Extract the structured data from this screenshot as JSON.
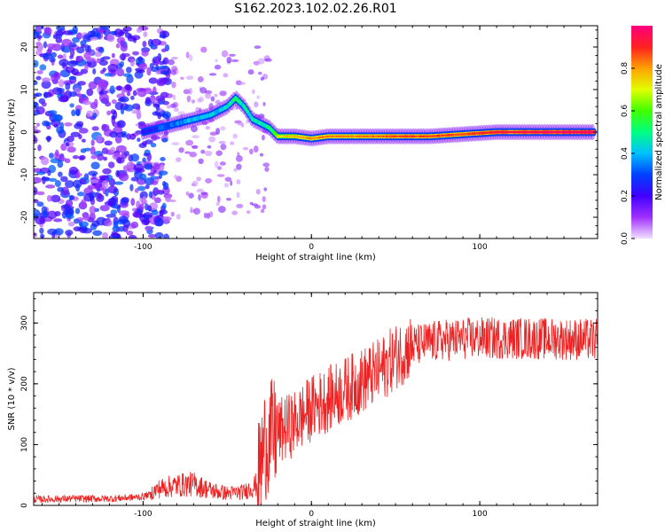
{
  "figure": {
    "title": "S162.2023.102.02.26.R01"
  },
  "chart_data": [
    {
      "type": "heatmap",
      "xlabel": "Height of straight line (km)",
      "ylabel": "Frequency (Hz)",
      "xlim": [
        -165,
        170
      ],
      "ylim": [
        -25,
        25
      ],
      "xticks": [
        -100,
        0,
        100
      ],
      "yticks": [
        -20,
        -10,
        0,
        10,
        20
      ],
      "colorbar": {
        "label": "Normalized spectral amplitude",
        "ticks": [
          0.0,
          0.2,
          0.4,
          0.6,
          0.8
        ],
        "colormap": [
          "#f0e0ff",
          "#a030ff",
          "#4000ff",
          "#0040ff",
          "#00c0ff",
          "#00ff80",
          "#40ff00",
          "#e0ff00",
          "#ffa000",
          "#ff2020",
          "#ff0080"
        ],
        "range": [
          0,
          1
        ]
      },
      "ridge": [
        {
          "x": -100,
          "f": 0,
          "a": 0.35
        },
        {
          "x": -90,
          "f": 1,
          "a": 0.4
        },
        {
          "x": -80,
          "f": 2,
          "a": 0.45
        },
        {
          "x": -70,
          "f": 3,
          "a": 0.5
        },
        {
          "x": -60,
          "f": 4,
          "a": 0.5
        },
        {
          "x": -50,
          "f": 6,
          "a": 0.55
        },
        {
          "x": -45,
          "f": 8,
          "a": 0.6
        },
        {
          "x": -40,
          "f": 6,
          "a": 0.55
        },
        {
          "x": -35,
          "f": 3,
          "a": 0.55
        },
        {
          "x": -25,
          "f": 1,
          "a": 0.6
        },
        {
          "x": -20,
          "f": -1,
          "a": 0.7
        },
        {
          "x": -10,
          "f": -1,
          "a": 0.75
        },
        {
          "x": 0,
          "f": -1.5,
          "a": 0.8
        },
        {
          "x": 10,
          "f": -1,
          "a": 0.8
        },
        {
          "x": 30,
          "f": -1,
          "a": 0.8
        },
        {
          "x": 50,
          "f": -1,
          "a": 0.85
        },
        {
          "x": 70,
          "f": -1,
          "a": 0.85
        },
        {
          "x": 90,
          "f": -0.5,
          "a": 0.85
        },
        {
          "x": 110,
          "f": 0,
          "a": 0.9
        },
        {
          "x": 130,
          "f": 0,
          "a": 0.92
        },
        {
          "x": 150,
          "f": 0,
          "a": 0.95
        },
        {
          "x": 168,
          "f": 0,
          "a": 0.95
        }
      ]
    },
    {
      "type": "line",
      "xlabel": "Height of straight line (km)",
      "ylabel": "SNR (10 * v/v)",
      "xlim": [
        -165,
        170
      ],
      "ylim": [
        0,
        350
      ],
      "xticks": [
        -100,
        0,
        100
      ],
      "yticks": [
        0,
        100,
        200,
        300
      ],
      "series": [
        {
          "color": "#ee2222",
          "x": [
            -165,
            -140,
            -120,
            -100,
            -90,
            -80,
            -70,
            -60,
            -50,
            -40,
            -32,
            -28,
            -25,
            -20,
            -10,
            0,
            10,
            20,
            30,
            40,
            50,
            60,
            70,
            80,
            90,
            100,
            110,
            120,
            130,
            140,
            150,
            160,
            170
          ],
          "values": [
            10,
            11,
            11,
            14,
            28,
            33,
            35,
            25,
            20,
            22,
            35,
            100,
            110,
            120,
            135,
            160,
            175,
            190,
            205,
            220,
            245,
            262,
            268,
            272,
            274,
            275,
            275,
            275,
            275,
            274,
            274,
            273,
            272
          ]
        }
      ]
    }
  ]
}
